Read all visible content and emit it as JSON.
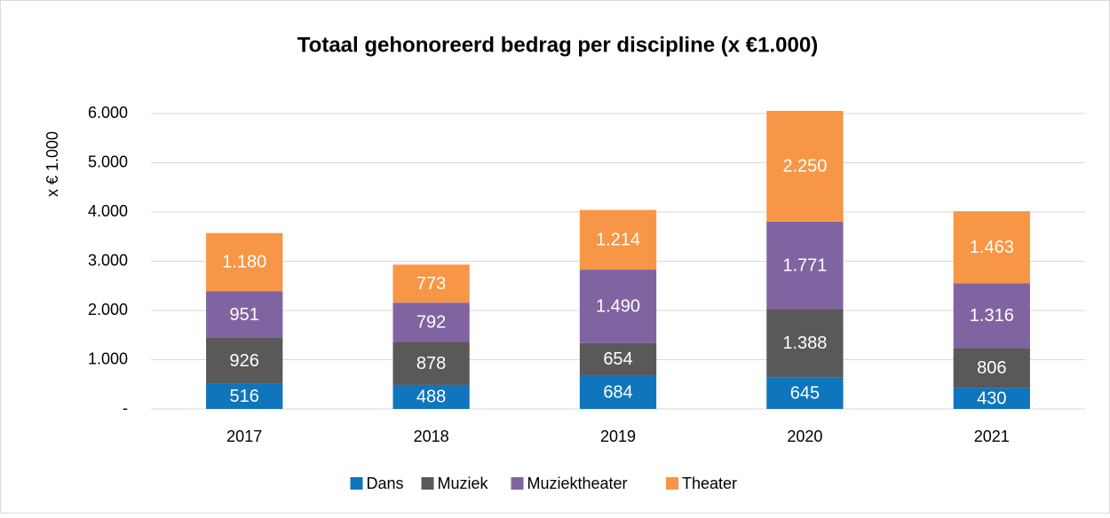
{
  "chart_data": {
    "type": "bar",
    "stacked": true,
    "title": "Totaal gehonoreerd bedrag per discipline (x €1.000)",
    "y_label": "x € 1.000",
    "categories": [
      "2017",
      "2018",
      "2019",
      "2020",
      "2021"
    ],
    "series": [
      {
        "name": "Dans",
        "color": "#0f75bc",
        "values": [
          516,
          488,
          684,
          645,
          430
        ],
        "value_labels": [
          "516",
          "488",
          "684",
          "645",
          "430"
        ]
      },
      {
        "name": "Muziek",
        "color": "#595959",
        "values": [
          926,
          878,
          654,
          1388,
          806
        ],
        "value_labels": [
          "926",
          "878",
          "654",
          "1.388",
          "806"
        ]
      },
      {
        "name": "Muziektheater",
        "color": "#8064a2",
        "values": [
          951,
          792,
          1490,
          1771,
          1316
        ],
        "value_labels": [
          "951",
          "792",
          "1.490",
          "1.771",
          "1.316"
        ]
      },
      {
        "name": "Theater",
        "color": "#f79646",
        "values": [
          1180,
          773,
          1214,
          2250,
          1463
        ],
        "value_labels": [
          "1.180",
          "773",
          "1.214",
          "2.250",
          "1.463"
        ]
      }
    ],
    "ylim": [
      0,
      6000
    ],
    "yticks": [
      {
        "value": 0,
        "label": "-"
      },
      {
        "value": 1000,
        "label": "1.000"
      },
      {
        "value": 2000,
        "label": "2.000"
      },
      {
        "value": 3000,
        "label": "3.000"
      },
      {
        "value": 4000,
        "label": "4.000"
      },
      {
        "value": 5000,
        "label": "5.000"
      },
      {
        "value": 6000,
        "label": "6.000"
      }
    ],
    "grid": true,
    "legend": "bottom"
  }
}
